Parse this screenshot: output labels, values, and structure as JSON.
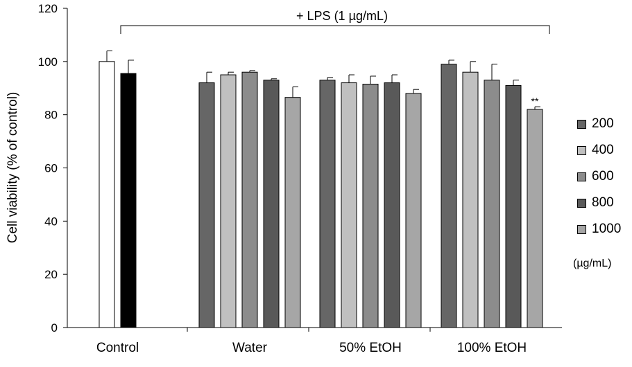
{
  "chart_data": {
    "type": "bar",
    "ylabel": "Cell viability (% of control)",
    "ylim": [
      0,
      120
    ],
    "yticks": [
      0,
      20,
      40,
      60,
      80,
      100,
      120
    ],
    "bracket_label": "+ LPS (1 µg/mL)",
    "legend_unit": "(µg/mL)",
    "groups": [
      {
        "label": "Control",
        "bars": [
          {
            "name": "",
            "value": 100,
            "error": 4,
            "color": "#ffffff"
          },
          {
            "name": "",
            "value": 95.5,
            "error": 5,
            "color": "#000000"
          }
        ]
      },
      {
        "label": "Water",
        "bars": [
          {
            "name": "200",
            "value": 92,
            "error": 4,
            "color": "#666666"
          },
          {
            "name": "400",
            "value": 95,
            "error": 1,
            "color": "#c0c0c0"
          },
          {
            "name": "600",
            "value": 96,
            "error": 0.6,
            "color": "#8c8c8c"
          },
          {
            "name": "800",
            "value": 93,
            "error": 0.5,
            "color": "#595959"
          },
          {
            "name": "1000",
            "value": 86.5,
            "error": 4,
            "color": "#a6a6a6"
          }
        ]
      },
      {
        "label": "50% EtOH",
        "bars": [
          {
            "name": "200",
            "value": 93,
            "error": 1,
            "color": "#666666"
          },
          {
            "name": "400",
            "value": 92,
            "error": 3,
            "color": "#c0c0c0"
          },
          {
            "name": "600",
            "value": 91.5,
            "error": 3,
            "color": "#8c8c8c"
          },
          {
            "name": "800",
            "value": 92,
            "error": 3,
            "color": "#595959"
          },
          {
            "name": "1000",
            "value": 88,
            "error": 1.5,
            "color": "#a6a6a6"
          }
        ]
      },
      {
        "label": "100% EtOH",
        "bars": [
          {
            "name": "200",
            "value": 99,
            "error": 1.5,
            "color": "#666666"
          },
          {
            "name": "400",
            "value": 96,
            "error": 4,
            "color": "#c0c0c0"
          },
          {
            "name": "600",
            "value": 93,
            "error": 6,
            "color": "#8c8c8c"
          },
          {
            "name": "800",
            "value": 91,
            "error": 2,
            "color": "#595959"
          },
          {
            "name": "1000",
            "value": 82,
            "error": 1,
            "color": "#a6a6a6",
            "annotation": "**"
          }
        ]
      }
    ],
    "legend": [
      {
        "name": "200",
        "color": "#666666"
      },
      {
        "name": "400",
        "color": "#c0c0c0"
      },
      {
        "name": "600",
        "color": "#8c8c8c"
      },
      {
        "name": "800",
        "color": "#595959"
      },
      {
        "name": "1000",
        "color": "#a6a6a6"
      }
    ]
  }
}
